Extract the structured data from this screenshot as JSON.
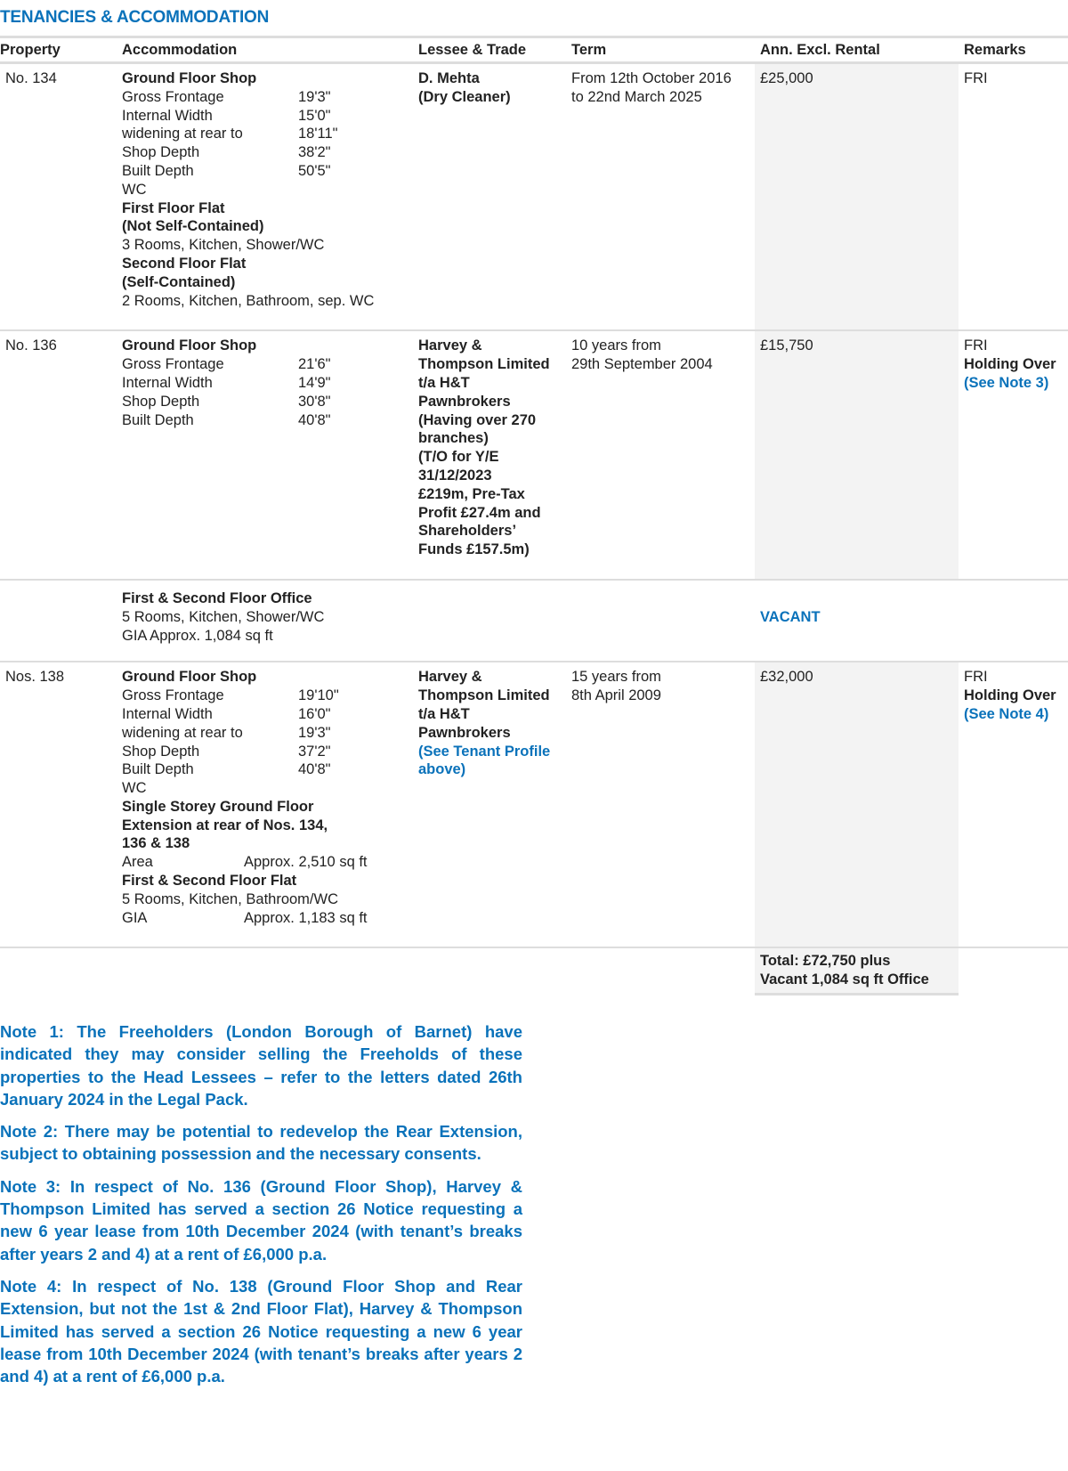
{
  "title": "TENANCIES & ACCOMMODATION",
  "headers": [
    "Property",
    "Accommodation",
    "Lessee & Trade",
    "Term",
    "Ann. Excl. Rental",
    "Remarks"
  ],
  "rows": [
    {
      "property": "No. 134",
      "accom": [
        {
          "t": "h",
          "text": "Ground Floor Shop"
        },
        {
          "t": "kv",
          "k": "Gross Frontage",
          "v": "19'3\""
        },
        {
          "t": "kv",
          "k": "Internal Width",
          "v": "15'0\""
        },
        {
          "t": "kv",
          "k": "widening at rear to",
          "v": "18'11\""
        },
        {
          "t": "kv",
          "k": "Shop Depth",
          "v": "38'2\""
        },
        {
          "t": "kv",
          "k": "Built Depth",
          "v": "50'5\""
        },
        {
          "t": "p",
          "text": "WC"
        },
        {
          "t": "h",
          "text": "First Floor Flat"
        },
        {
          "t": "h",
          "text": "(Not Self-Contained)"
        },
        {
          "t": "p",
          "text": "3 Rooms, Kitchen, Shower/WC"
        },
        {
          "t": "h",
          "text": "Second Floor Flat"
        },
        {
          "t": "h",
          "text": "(Self-Contained)"
        },
        {
          "t": "p",
          "text": "2 Rooms, Kitchen, Bathroom, sep. WC"
        }
      ],
      "lessee": [
        {
          "t": "h",
          "text": "D. Mehta"
        },
        {
          "t": "h",
          "text": "(Dry Cleaner)"
        }
      ],
      "term": [
        "From 12th October 2016",
        "to 22nd March 2025"
      ],
      "rental": "£25,000",
      "remarks": [
        {
          "t": "p",
          "text": "FRI"
        }
      ]
    },
    {
      "property": "No. 136",
      "accom": [
        {
          "t": "h",
          "text": "Ground Floor Shop"
        },
        {
          "t": "kv",
          "k": "Gross Frontage",
          "v": "21'6\""
        },
        {
          "t": "kv",
          "k": "Internal Width",
          "v": "14'9\""
        },
        {
          "t": "kv",
          "k": "Shop Depth",
          "v": "30'8\""
        },
        {
          "t": "kv",
          "k": "Built Depth",
          "v": "40'8\""
        }
      ],
      "lessee": [
        {
          "t": "h",
          "text": "Harvey &"
        },
        {
          "t": "h",
          "text": "Thompson Limited"
        },
        {
          "t": "h",
          "text": "t/a H&T"
        },
        {
          "t": "h",
          "text": "Pawnbrokers"
        },
        {
          "t": "h",
          "text": "(Having over 270"
        },
        {
          "t": "h",
          "text": "branches)"
        },
        {
          "t": "h",
          "text": "(T/O for Y/E"
        },
        {
          "t": "h",
          "text": "31/12/2023"
        },
        {
          "t": "h",
          "text": "£219m, Pre-Tax"
        },
        {
          "t": "h",
          "text": "Profit £27.4m and"
        },
        {
          "t": "h",
          "text": "Shareholders’"
        },
        {
          "t": "h",
          "text": "Funds £157.5m)"
        }
      ],
      "term": [
        "10 years from",
        "29th September 2004"
      ],
      "rental": "£15,750",
      "remarks": [
        {
          "t": "p",
          "text": "FRI"
        },
        {
          "t": "h",
          "text": "Holding Over"
        },
        {
          "t": "l",
          "text": "(See Note 3)"
        }
      ],
      "sub": {
        "accom": [
          {
            "t": "h",
            "text": "First & Second Floor Office"
          },
          {
            "t": "p",
            "text": "5 Rooms, Kitchen, Shower/WC"
          },
          {
            "t": "p",
            "text": "GIA Approx. 1,084 sq ft"
          }
        ],
        "status": "VACANT"
      }
    },
    {
      "property": "Nos. 138",
      "accom": [
        {
          "t": "h",
          "text": "Ground Floor Shop"
        },
        {
          "t": "kv",
          "k": "Gross Frontage",
          "v": "19'10\""
        },
        {
          "t": "kv",
          "k": "Internal Width",
          "v": "16'0\""
        },
        {
          "t": "kv",
          "k": "widening at rear to",
          "v": "19'3\""
        },
        {
          "t": "kv",
          "k": "Shop Depth",
          "v": "37'2\""
        },
        {
          "t": "kv",
          "k": "Built Depth",
          "v": "40'8\""
        },
        {
          "t": "p",
          "text": "WC"
        },
        {
          "t": "h",
          "text": "Single Storey Ground Floor"
        },
        {
          "t": "h",
          "text": "Extension at rear of Nos. 134,"
        },
        {
          "t": "h",
          "text": "136 & 138"
        },
        {
          "t": "kv2",
          "k": "Area",
          "v": "Approx. 2,510 sq ft"
        },
        {
          "t": "h",
          "text": "First & Second Floor Flat"
        },
        {
          "t": "p",
          "text": "5 Rooms, Kitchen, Bathroom/WC"
        },
        {
          "t": "kv2",
          "k": "GIA",
          "v": "Approx. 1,183 sq ft"
        }
      ],
      "lessee": [
        {
          "t": "h",
          "text": "Harvey &"
        },
        {
          "t": "h",
          "text": "Thompson Limited"
        },
        {
          "t": "h",
          "text": "t/a H&T"
        },
        {
          "t": "h",
          "text": "Pawnbrokers"
        },
        {
          "t": "l",
          "text": "(See Tenant Profile"
        },
        {
          "t": "l",
          "text": "above)"
        }
      ],
      "term": [
        "15 years from",
        "8th April 2009"
      ],
      "rental": "£32,000",
      "remarks": [
        {
          "t": "p",
          "text": "FRI"
        },
        {
          "t": "h",
          "text": "Holding Over"
        },
        {
          "t": "l",
          "text": "(See Note 4)"
        }
      ]
    }
  ],
  "total": [
    "Total: £72,750 plus",
    "Vacant 1,084 sq ft Office"
  ],
  "notes": [
    "Note 1: The Freeholders (London Borough of Barnet) have indicated they may consider selling the Freeholds of these properties to the Head Lessees – refer to the letters dated 26th January 2024 in the Legal Pack.",
    "Note 2: There may be potential to redevelop the Rear Extension, subject to obtaining possession and the necessary consents.",
    "Note 3: In respect of No. 136 (Ground Floor Shop), Harvey & Thompson Limited has served a section 26 Notice requesting a new 6 year lease from 10th December 2024 (with tenant’s breaks after years 2 and 4) at a rent of £6,000 p.a.",
    "Note 4: In respect of No. 138 (Ground Floor Shop and Rear Extension, but not the 1st & 2nd Floor Flat), Harvey & Thompson Limited has served a section 26 Notice requesting a new 6 year lease from 10th December 2024 (with tenant’s breaks after years 2 and 4) at a rent of £6,000 p.a."
  ],
  "colors": {
    "accent": "#0a72ba",
    "shade": "#f3f3f3",
    "rule": "#dddddd"
  }
}
